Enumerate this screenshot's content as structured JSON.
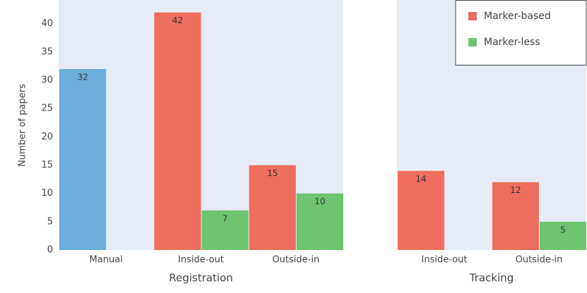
{
  "chart_data": [
    {
      "type": "bar",
      "x_label": "Registration",
      "y_label": "Number of papers",
      "categories": [
        "Manual",
        "Inside-out",
        "Outside-in"
      ],
      "series": [
        {
          "color": "#6aaed9",
          "values": [
            32,
            null,
            null
          ]
        },
        {
          "name": "Marker-based",
          "color": "#ee6e5f",
          "values": [
            null,
            42,
            15
          ]
        },
        {
          "name": "Marker-less",
          "color": "#6fc56f",
          "values": [
            null,
            7,
            10
          ]
        }
      ],
      "ylim": [
        0,
        44.2
      ],
      "yticks": [
        0,
        5,
        10,
        15,
        20,
        25,
        30,
        35,
        40
      ],
      "legend": "top-right"
    },
    {
      "type": "bar",
      "x_label": "Tracking",
      "categories": [
        "Inside-out",
        "Outside-in"
      ],
      "series": [
        {
          "name": "Marker-based",
          "color": "#ee6e5f",
          "values": [
            14,
            12
          ]
        },
        {
          "name": "Marker-less",
          "color": "#6fc56f",
          "values": [
            null,
            5
          ]
        }
      ],
      "ylim": [
        0,
        44.2
      ]
    }
  ]
}
